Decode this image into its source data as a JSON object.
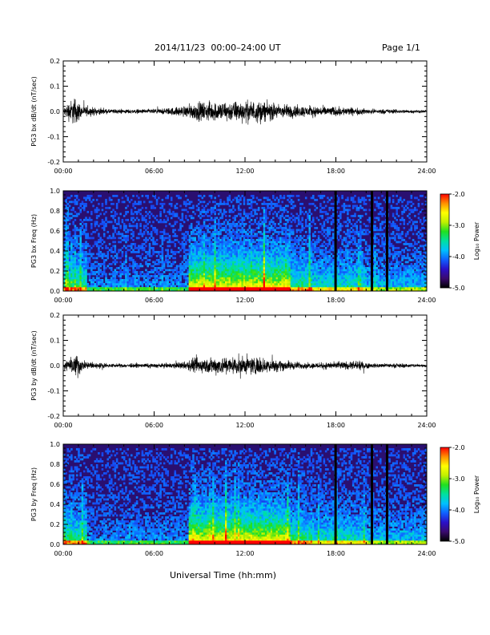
{
  "header": {
    "title": "2014/11/23  00:00–24:00 UT",
    "page": "Page 1/1"
  },
  "x_axis_label": "Universal Time (hh:mm)",
  "colorbar": {
    "label": "Log₁₀ Power",
    "ticks": [
      "-2.0",
      "-3.0",
      "-4.0",
      "-5.0"
    ],
    "range": [
      -5.0,
      -2.0
    ],
    "colors": [
      "#000000",
      "#3a0a6e",
      "#2a10c8",
      "#1060ff",
      "#00c0ff",
      "#00e0a0",
      "#20e020",
      "#c0f000",
      "#ffff00",
      "#ff9000",
      "#ff0000"
    ]
  },
  "chart_data": [
    {
      "type": "line",
      "ylabel": "PG3 bx dB/dt (nT/sec)",
      "xlim": [
        0,
        24
      ],
      "ylim": [
        -0.2,
        0.2
      ],
      "x_ticks": [
        "00:00",
        "06:00",
        "12:00",
        "18:00",
        "24:00"
      ],
      "y_ticks": [
        "-0.2",
        "-0.1",
        "0.0",
        "0.1",
        "0.2"
      ],
      "envelope": [
        {
          "t": 0.0,
          "a": 0.015
        },
        {
          "t": 0.3,
          "a": 0.05
        },
        {
          "t": 0.8,
          "a": 0.08
        },
        {
          "t": 1.2,
          "a": 0.03
        },
        {
          "t": 3.0,
          "a": 0.012
        },
        {
          "t": 5.5,
          "a": 0.012
        },
        {
          "t": 6.5,
          "a": 0.015
        },
        {
          "t": 8.0,
          "a": 0.03
        },
        {
          "t": 8.8,
          "a": 0.05
        },
        {
          "t": 10.5,
          "a": 0.055
        },
        {
          "t": 12.8,
          "a": 0.06
        },
        {
          "t": 14.5,
          "a": 0.04
        },
        {
          "t": 16.0,
          "a": 0.03
        },
        {
          "t": 18.5,
          "a": 0.025
        },
        {
          "t": 20.0,
          "a": 0.015
        },
        {
          "t": 24.0,
          "a": 0.008
        }
      ]
    },
    {
      "type": "heatmap",
      "ylabel": "PG3 bx Freq (Hz)",
      "xlim": [
        0,
        24
      ],
      "ylim": [
        0.0,
        1.0
      ],
      "x_ticks": [
        "00:00",
        "06:00",
        "12:00",
        "18:00",
        "24:00"
      ],
      "y_ticks": [
        "0.0",
        "0.2",
        "0.4",
        "0.6",
        "0.8",
        "1.0"
      ],
      "gaps_hours": [
        17.9,
        20.3,
        21.3
      ]
    },
    {
      "type": "line",
      "ylabel": "PG3 by dB/dt (nT/sec)",
      "xlim": [
        0,
        24
      ],
      "ylim": [
        -0.2,
        0.2
      ],
      "x_ticks": [
        "00:00",
        "06:00",
        "12:00",
        "18:00",
        "24:00"
      ],
      "y_ticks": [
        "-0.2",
        "-0.1",
        "0.0",
        "0.1",
        "0.2"
      ],
      "envelope": [
        {
          "t": 0.0,
          "a": 0.012
        },
        {
          "t": 0.5,
          "a": 0.04
        },
        {
          "t": 0.9,
          "a": 0.07
        },
        {
          "t": 1.3,
          "a": 0.025
        },
        {
          "t": 3.0,
          "a": 0.01
        },
        {
          "t": 6.5,
          "a": 0.012
        },
        {
          "t": 8.0,
          "a": 0.02
        },
        {
          "t": 8.6,
          "a": 0.04
        },
        {
          "t": 10.5,
          "a": 0.05
        },
        {
          "t": 12.5,
          "a": 0.05
        },
        {
          "t": 14.5,
          "a": 0.03
        },
        {
          "t": 16.0,
          "a": 0.015
        },
        {
          "t": 18.0,
          "a": 0.02
        },
        {
          "t": 19.5,
          "a": 0.025
        },
        {
          "t": 20.5,
          "a": 0.012
        },
        {
          "t": 24.0,
          "a": 0.01
        }
      ]
    },
    {
      "type": "heatmap",
      "ylabel": "PG3 by Freq (Hz)",
      "xlim": [
        0,
        24
      ],
      "ylim": [
        0.0,
        1.0
      ],
      "x_ticks": [
        "00:00",
        "06:00",
        "12:00",
        "18:00",
        "24:00"
      ],
      "y_ticks": [
        "0.0",
        "0.2",
        "0.4",
        "0.6",
        "0.8",
        "1.0"
      ],
      "gaps_hours": [
        17.9,
        20.3,
        21.3
      ]
    }
  ]
}
